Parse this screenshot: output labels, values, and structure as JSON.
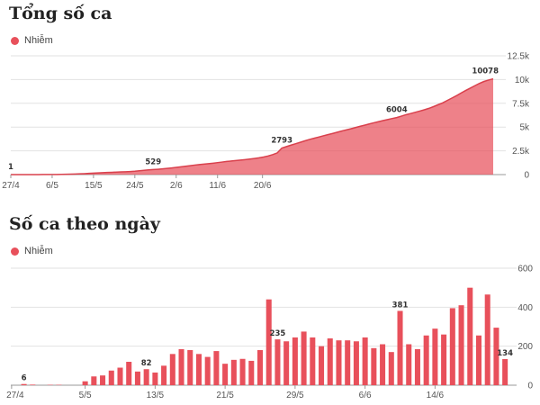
{
  "chart_data": [
    {
      "type": "area",
      "title": "Tổng số ca",
      "legend": [
        {
          "name": "Nhiễm",
          "color": "#e8505b"
        }
      ],
      "x_tick_labels": [
        "27/4",
        "6/5",
        "15/5",
        "24/5",
        "2/6",
        "11/6",
        "20/6"
      ],
      "y_tick_labels": [
        "0",
        "2.5k",
        "5k",
        "7.5k",
        "10k",
        "12.5k"
      ],
      "ylim": [
        0,
        12500
      ],
      "color": "#e8505b",
      "series": [
        {
          "name": "Nhiễm",
          "values": [
            1,
            1,
            2,
            3,
            4,
            5,
            6,
            8,
            10,
            12,
            15,
            20,
            30,
            45,
            60,
            80,
            100,
            125,
            150,
            175,
            200,
            220,
            240,
            260,
            280,
            300,
            320,
            350,
            400,
            450,
            500,
            529,
            560,
            600,
            650,
            700,
            760,
            820,
            880,
            940,
            1000,
            1050,
            1100,
            1150,
            1200,
            1260,
            1320,
            1380,
            1430,
            1480,
            1530,
            1580,
            1630,
            1690,
            1760,
            1850,
            1960,
            2100,
            2280,
            2793,
            2950,
            3100,
            3250,
            3400,
            3550,
            3700,
            3820,
            3950,
            4080,
            4200,
            4320,
            4450,
            4580,
            4700,
            4820,
            4950,
            5080,
            5200,
            5330,
            5450,
            5560,
            5680,
            5790,
            5900,
            6004,
            6150,
            6300,
            6420,
            6550,
            6680,
            6820,
            6970,
            7150,
            7350,
            7550,
            7800,
            8050,
            8300,
            8580,
            8850,
            9100,
            9350,
            9600,
            9800,
            9950,
            10078
          ]
        }
      ],
      "annotations": [
        {
          "index": 0,
          "label": "1"
        },
        {
          "index": 31,
          "label": "529"
        },
        {
          "index": 59,
          "label": "2793"
        },
        {
          "index": 84,
          "label": "6004"
        },
        {
          "index": 105,
          "label": "10078"
        }
      ]
    },
    {
      "type": "bar",
      "title": "Số ca theo ngày",
      "legend": [
        {
          "name": "Nhiễm",
          "color": "#e8505b"
        }
      ],
      "x_tick_labels": [
        "27/4",
        "5/5",
        "13/5",
        "21/5",
        "29/5",
        "6/6",
        "14/6"
      ],
      "y_tick_labels": [
        "0",
        "200",
        "400",
        "600"
      ],
      "ylim": [
        0,
        600
      ],
      "color": "#e8505b",
      "series": [
        {
          "name": "Nhiễm",
          "values": [
            0,
            6,
            3,
            0,
            2,
            2,
            0,
            0,
            20,
            45,
            50,
            75,
            90,
            120,
            70,
            82,
            65,
            100,
            160,
            185,
            180,
            160,
            145,
            175,
            110,
            130,
            135,
            125,
            180,
            440,
            235,
            225,
            245,
            275,
            245,
            200,
            240,
            230,
            230,
            225,
            245,
            190,
            210,
            170,
            381,
            210,
            185,
            255,
            290,
            260,
            395,
            410,
            500,
            255,
            465,
            295,
            134
          ]
        }
      ],
      "annotations": [
        {
          "index": 1,
          "label": "6"
        },
        {
          "index": 15,
          "label": "82"
        },
        {
          "index": 30,
          "label": "235"
        },
        {
          "index": 44,
          "label": "381"
        },
        {
          "index": 56,
          "label": "134"
        }
      ]
    }
  ]
}
